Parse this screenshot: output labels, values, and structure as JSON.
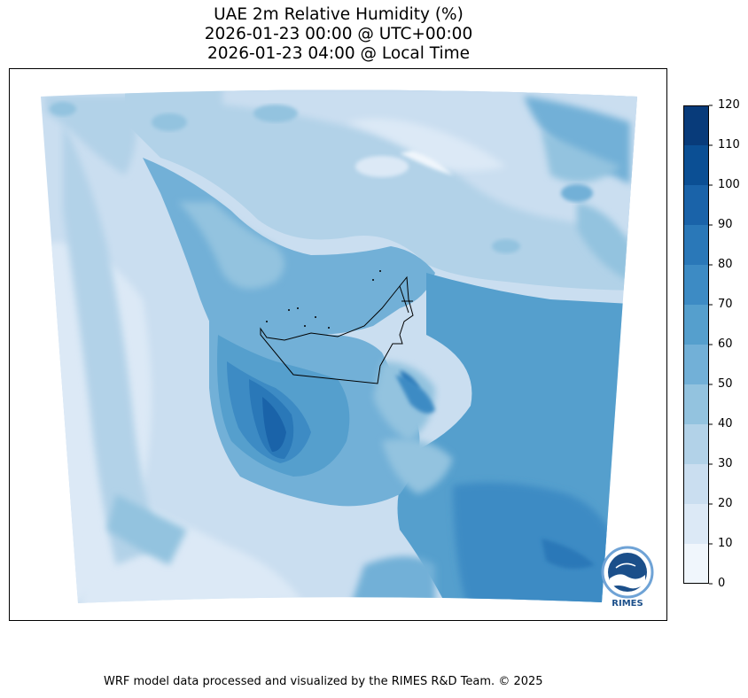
{
  "title": {
    "line1": "UAE 2m Relative Humidity (%)",
    "line2": "2026-01-23 00:00 @ UTC+00:00",
    "line3": "2026-01-23 04:00 @ Local Time"
  },
  "colorbar": {
    "ticks": [
      "0",
      "10",
      "20",
      "30",
      "40",
      "50",
      "60",
      "70",
      "80",
      "90",
      "100",
      "110",
      "120"
    ],
    "levels": [
      0,
      10,
      20,
      30,
      40,
      50,
      60,
      70,
      80,
      90,
      100,
      110,
      120
    ],
    "colors": [
      "#f0f6fc",
      "#dce9f6",
      "#cadef0",
      "#b2d2e8",
      "#93c3df",
      "#72b0d7",
      "#559fcd",
      "#3d8bc4",
      "#2a78b8",
      "#1a63a9",
      "#0b4f94",
      "#083b7a"
    ]
  },
  "logo": {
    "name": "rimes-logo",
    "text": "RIMES"
  },
  "footer": "WRF model data processed and visualized by the RIMES R&D Team. © 2025"
}
